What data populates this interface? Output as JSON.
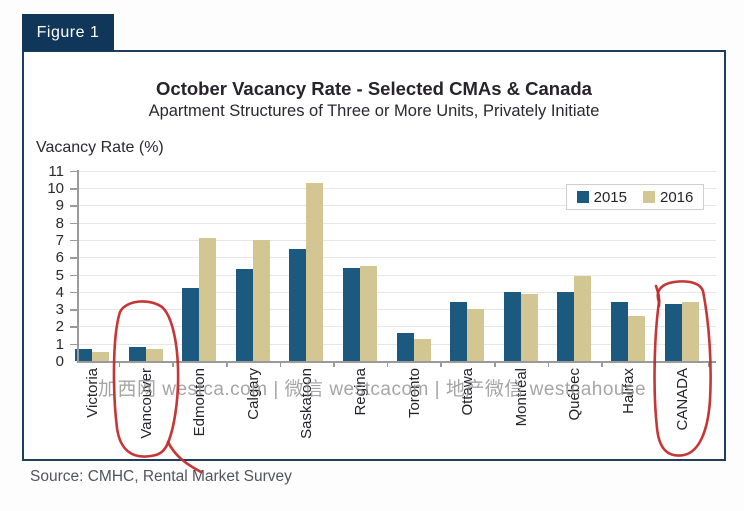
{
  "figure_label": "Figure 1",
  "source": "Source: CMHC, Rental Market Survey",
  "watermark": "加西网 westca.com | 微信 westcacom | 地产微信 westcahouse",
  "colors": {
    "series_2015": "#1b5a7e",
    "series_2016": "#d2c692",
    "figure_tab": "#10365a",
    "frame_border": "#1f3d5c",
    "annotation_red": "#c42b2b"
  },
  "chart_data": {
    "type": "bar",
    "title": "October Vacancy Rate - Selected CMAs & Canada",
    "subtitle": "Apartment Structures of Three or More Units, Privately Initiate",
    "ylabel": "Vacancy Rate (%)",
    "xlabel": "",
    "ylim": [
      0,
      11
    ],
    "ytick_step": 1,
    "grid": true,
    "legend_position": "top-right",
    "categories": [
      "Victoria",
      "Vancouver",
      "Edmonton",
      "Calgary",
      "Saskatoon",
      "Regina",
      "Toronto",
      "Ottawa",
      "Montréal",
      "Québec",
      "Halifax",
      "CANADA"
    ],
    "series": [
      {
        "name": "2015",
        "color": "#1b5a7e",
        "values": [
          0.7,
          0.8,
          4.2,
          5.3,
          6.5,
          5.4,
          1.6,
          3.4,
          4.0,
          4.0,
          3.4,
          3.3
        ]
      },
      {
        "name": "2016",
        "color": "#d2c692",
        "values": [
          0.5,
          0.7,
          7.1,
          7.0,
          10.3,
          5.5,
          1.3,
          3.0,
          3.9,
          4.9,
          2.6,
          3.4
        ]
      }
    ],
    "annotations": [
      {
        "type": "hand-drawn-red-circle",
        "target": "Vancouver"
      },
      {
        "type": "hand-drawn-red-circle",
        "target": "CANADA"
      }
    ]
  }
}
